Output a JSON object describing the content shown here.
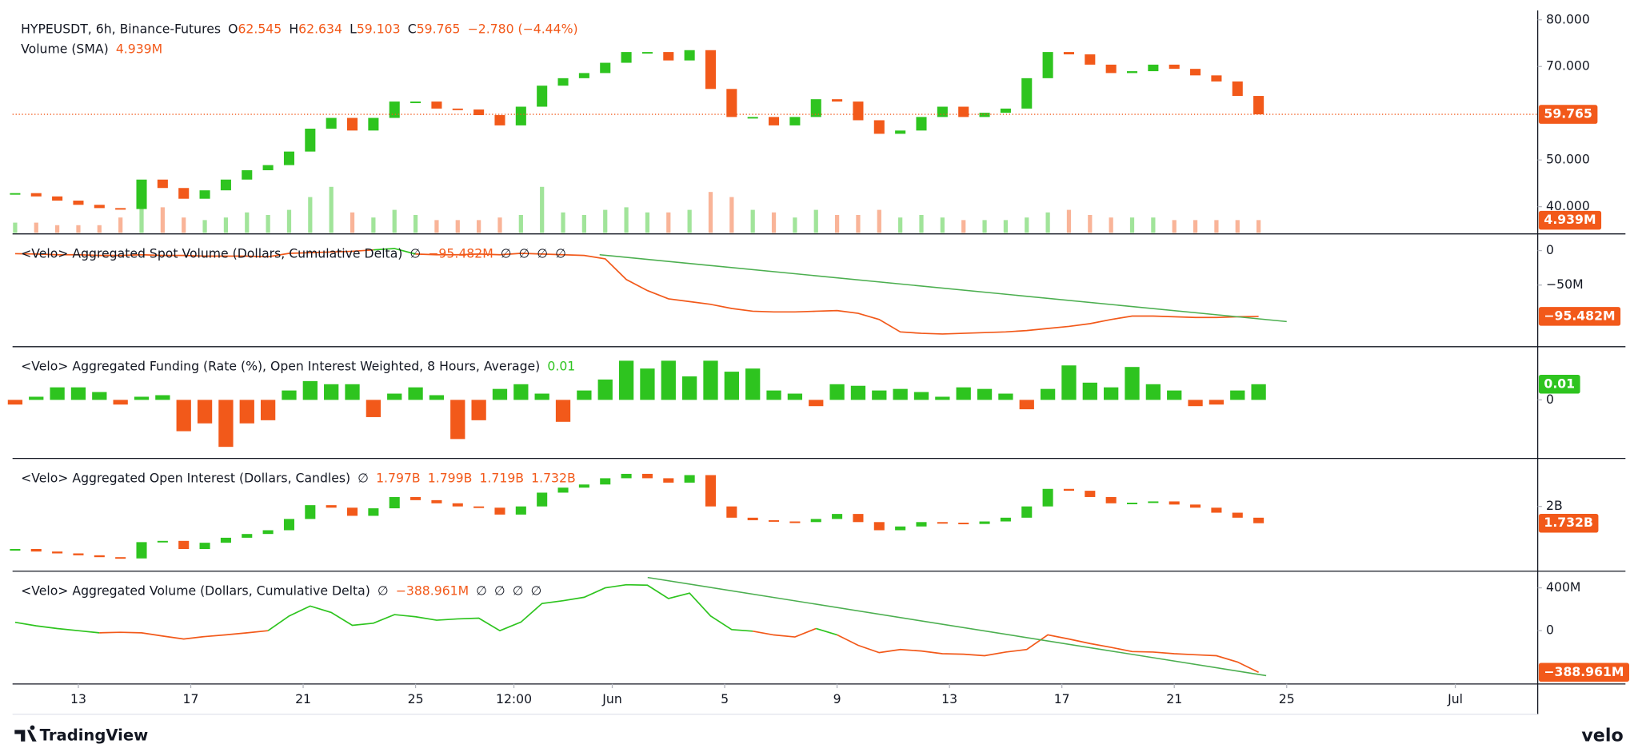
{
  "x_axis": {
    "xlim": [
      -2.342,
      51.933
    ],
    "x": [
      -2.25,
      -1.5,
      -0.75,
      0,
      0.75,
      1.5,
      2.25,
      3,
      3.75,
      4.5,
      5.25,
      6,
      6.75,
      7.5,
      8.25,
      9,
      9.75,
      10.5,
      11.25,
      12,
      12.75,
      13.5,
      14.25,
      15,
      15.75,
      16.5,
      17.25,
      18,
      18.75,
      19.5,
      20.25,
      21,
      21.75,
      22.5,
      23.25,
      24,
      24.75,
      25.5,
      26.25,
      27,
      27.75,
      28.5,
      29.25,
      30,
      30.75,
      31.5,
      32.25,
      33,
      33.75,
      34.5,
      35.25,
      36,
      36.75,
      37.5,
      38.25,
      39,
      39.75,
      40.5,
      41.25,
      42
    ],
    "xticks": [
      {
        "value": 0,
        "label": "13"
      },
      {
        "value": 4,
        "label": "17"
      },
      {
        "value": 8,
        "label": "21"
      },
      {
        "value": 12,
        "label": "25"
      },
      {
        "value": 15.5,
        "label": "12:00"
      },
      {
        "value": 19,
        "label": "Jun"
      },
      {
        "value": 23,
        "label": "5"
      },
      {
        "value": 27,
        "label": "9"
      },
      {
        "value": 31,
        "label": "13"
      },
      {
        "value": 35,
        "label": "17"
      },
      {
        "value": 39,
        "label": "21"
      },
      {
        "value": 43,
        "label": "25"
      },
      {
        "value": 49,
        "label": "Jul"
      }
    ]
  },
  "chart_data": [
    {
      "type": "candlestick",
      "legend": [
        [
          {
            "text": "HYPEUSDT, 6h, Binance-Futures",
            "color": "#131722"
          },
          {
            "text": "O",
            "color": "#131722"
          },
          {
            "text": "62.545",
            "color": "#f2591a"
          },
          {
            "text": "H",
            "color": "#131722"
          },
          {
            "text": "62.634",
            "color": "#f2591a"
          },
          {
            "text": "L",
            "color": "#131722"
          },
          {
            "text": "59.103",
            "color": "#f2591a"
          },
          {
            "text": "C",
            "color": "#131722"
          },
          {
            "text": "59.765",
            "color": "#f2591a"
          },
          {
            "text": "−2.780 (−4.44%)",
            "color": "#f2591a"
          }
        ],
        [
          {
            "text": "Volume (SMA)",
            "color": "#131722"
          },
          {
            "text": "4.939M",
            "color": "#f2591a"
          }
        ]
      ],
      "up_color": "#2ec41f",
      "down_color": "#f2591a",
      "values": [
        42.9,
        42.2,
        41.3,
        40.4,
        39.7,
        39.5,
        45.8,
        44,
        41.7,
        43.5,
        45.8,
        47.8,
        48.9,
        51.8,
        56.7,
        59,
        56.3,
        59,
        62.5,
        62.5,
        61,
        60.8,
        59.6,
        57.4,
        61.4,
        65.9,
        67.5,
        68.6,
        70.8,
        73.1,
        73.1,
        71.3,
        73.5,
        65.2,
        59.2,
        59.2,
        57.4,
        59.2,
        63,
        62.5,
        58.5,
        55.6,
        56.3,
        59.2,
        61.4,
        59.2,
        60.1,
        61,
        67.5,
        73.1,
        72.6,
        70.4,
        68.6,
        69,
        70.4,
        69.5,
        68.1,
        66.8,
        63.7,
        59.765
      ],
      "volume": [
        4,
        4,
        3,
        3,
        3,
        6,
        20,
        10,
        6,
        5,
        6,
        8,
        7,
        9,
        14,
        18,
        8,
        6,
        9,
        7,
        5,
        5,
        5,
        6,
        7,
        18,
        8,
        7,
        9,
        10,
        8,
        8,
        9,
        16,
        14,
        9,
        8,
        6,
        9,
        7,
        7,
        9,
        6,
        7,
        6,
        5,
        5,
        5,
        6,
        8,
        9,
        7,
        6,
        6,
        6,
        5,
        5,
        5,
        5,
        5
      ],
      "volume_ylim": [
        0,
        87
      ],
      "ylim": [
        34.4,
        82
      ],
      "yticks": [
        {
          "value": 80,
          "label": "80.000"
        },
        {
          "value": 70,
          "label": "70.000"
        },
        {
          "value": 50,
          "label": "50.000"
        },
        {
          "value": 40,
          "label": "40.000"
        }
      ],
      "last": {
        "value": 59.765,
        "label": "59.765"
      },
      "volume_last": {
        "value": 4.939,
        "label": "4.939M"
      },
      "badge_color": "#f2591a"
    },
    {
      "type": "line",
      "legend": [
        [
          {
            "text": "<Velo> Aggregated Spot Volume (Dollars, Cumulative Delta)",
            "color": "#131722"
          },
          {
            "text": "∅",
            "color": "#131722"
          },
          {
            "text": "−95.482M",
            "color": "#f2591a"
          },
          {
            "text": "∅",
            "color": "#131722"
          },
          {
            "text": "∅",
            "color": "#131722"
          },
          {
            "text": "∅",
            "color": "#131722"
          },
          {
            "text": "∅",
            "color": "#131722"
          }
        ]
      ],
      "up_color": "#2ec41f",
      "down_color": "#f2591a",
      "values": [
        -4.5,
        -5,
        -6,
        -6,
        -7,
        -7,
        -6,
        -7,
        -7,
        -8,
        -8,
        -8,
        -9,
        -4,
        -3,
        -2,
        -1,
        1,
        3,
        -5,
        -6,
        -6,
        -5,
        -6,
        -4,
        -5,
        -6,
        -7,
        -12,
        -42,
        -58,
        -70,
        -74,
        -78,
        -84,
        -88,
        -89,
        -89,
        -88,
        -87,
        -91,
        -100,
        -118,
        -120,
        -121,
        -120,
        -119,
        -118,
        -116,
        -113,
        -110,
        -106,
        -100,
        -95,
        -95,
        -96,
        -97,
        -97,
        -96,
        -95.482
      ],
      "trendline": {
        "x": [
          18.55,
          43
        ],
        "values": [
          -6,
          -103
        ],
        "color": "#4caf50"
      },
      "ylim": [
        -137.9,
        22.7
      ],
      "yticks": [
        0,
        {
          "value": -50,
          "label": "−50M"
        }
      ],
      "last": {
        "value": -95.482,
        "label": "−95.482M"
      },
      "badge_color": "#f2591a"
    },
    {
      "type": "histogram",
      "legend": [
        [
          {
            "text": "<Velo> Aggregated Funding (Rate (%), Open Interest Weighted, 8 Hours, Average)",
            "color": "#131722"
          },
          {
            "text": "0.01",
            "color": "#2ec41f"
          }
        ]
      ],
      "up_color": "#2ec41f",
      "down_color": "#f2591a",
      "values": [
        -0.003,
        0.002,
        0.008,
        0.008,
        0.005,
        -0.003,
        0.002,
        0.003,
        -0.02,
        -0.015,
        -0.03,
        -0.015,
        -0.013,
        0.006,
        0.012,
        0.01,
        0.01,
        -0.011,
        0.004,
        0.008,
        0.003,
        -0.025,
        -0.013,
        0.007,
        0.01,
        0.004,
        -0.014,
        0.006,
        0.013,
        0.025,
        0.02,
        0.025,
        0.015,
        0.025,
        0.018,
        0.02,
        0.006,
        0.004,
        -0.004,
        0.01,
        0.009,
        0.006,
        0.007,
        0.005,
        0.002,
        0.008,
        0.007,
        0.004,
        -0.006,
        0.007,
        0.022,
        0.011,
        0.008,
        0.021,
        0.01,
        0.006,
        -0.004,
        -0.003,
        0.006,
        0.01
      ],
      "ylim": [
        -0.0367,
        0.0333
      ],
      "yticks": [
        0
      ],
      "last": {
        "value": 0.01,
        "label": "0.01"
      },
      "badge_color": "#2ec41f"
    },
    {
      "type": "candlestick",
      "legend": [
        [
          {
            "text": "<Velo> Aggregated Open Interest (Dollars, Candles)",
            "color": "#131722"
          },
          {
            "text": "∅",
            "color": "#131722"
          },
          {
            "text": "1.797B",
            "color": "#f2591a"
          },
          {
            "text": "1.799B",
            "color": "#f2591a"
          },
          {
            "text": "1.719B",
            "color": "#f2591a"
          },
          {
            "text": "1.732B",
            "color": "#f2591a"
          }
        ]
      ],
      "up_color": "#2ec41f",
      "down_color": "#f2591a",
      "values": [
        1.32,
        1.28,
        1.25,
        1.22,
        1.19,
        1.17,
        1.43,
        1.45,
        1.32,
        1.42,
        1.5,
        1.56,
        1.62,
        1.8,
        2.02,
        1.98,
        1.85,
        1.97,
        2.15,
        2.1,
        2.05,
        2.0,
        1.98,
        1.87,
        2.0,
        2.22,
        2.3,
        2.35,
        2.45,
        2.52,
        2.45,
        2.38,
        2.5,
        2.0,
        1.82,
        1.78,
        1.76,
        1.75,
        1.8,
        1.88,
        1.75,
        1.62,
        1.68,
        1.75,
        1.74,
        1.72,
        1.76,
        1.82,
        2.0,
        2.28,
        2.25,
        2.15,
        2.05,
        2.06,
        2.08,
        2.03,
        1.98,
        1.9,
        1.82,
        1.732
      ],
      "ylim": [
        0.983,
        2.75
      ],
      "yticks": [
        {
          "value": 2,
          "label": "2B"
        }
      ],
      "last": {
        "value": 1.732,
        "label": "1.732B"
      },
      "badge_color": "#f2591a"
    },
    {
      "type": "line",
      "legend": [
        [
          {
            "text": "<Velo> Aggregated Volume (Dollars, Cumulative Delta)",
            "color": "#131722"
          },
          {
            "text": "∅",
            "color": "#131722"
          },
          {
            "text": "−388.961M",
            "color": "#f2591a"
          },
          {
            "text": "∅",
            "color": "#131722"
          },
          {
            "text": "∅",
            "color": "#131722"
          },
          {
            "text": "∅",
            "color": "#131722"
          },
          {
            "text": "∅",
            "color": "#131722"
          }
        ]
      ],
      "up_color": "#2ec41f",
      "down_color": "#f2591a",
      "values": [
        78,
        45,
        20,
        0,
        -20,
        -15,
        -20,
        -50,
        -78,
        -55,
        -39,
        -20,
        0,
        137,
        230,
        170,
        50,
        70,
        150,
        130,
        98,
        110,
        117,
        0,
        80,
        254,
        280,
        312,
        400,
        429,
        425,
        300,
        351,
        137,
        10,
        -5,
        -40,
        -59,
        20,
        -39,
        -137,
        -205,
        -176,
        -190,
        -215,
        -220,
        -234,
        -200,
        -176,
        -39,
        -78,
        -120,
        -156,
        -195,
        -200,
        -215,
        -225,
        -234,
        -293,
        -388.961
      ],
      "trendline": {
        "x": [
          20.26,
          42.27
        ],
        "values": [
          497,
          -420
        ],
        "color": "#4caf50"
      },
      "ylim": [
        -488,
        546
      ],
      "yticks": [
        {
          "value": 400,
          "label": "400M"
        },
        0
      ],
      "last": {
        "value": -388.961,
        "label": "−388.961M"
      },
      "badge_color": "#f2591a"
    }
  ],
  "footer": {
    "brand": "TradingView",
    "velo": "velo"
  }
}
